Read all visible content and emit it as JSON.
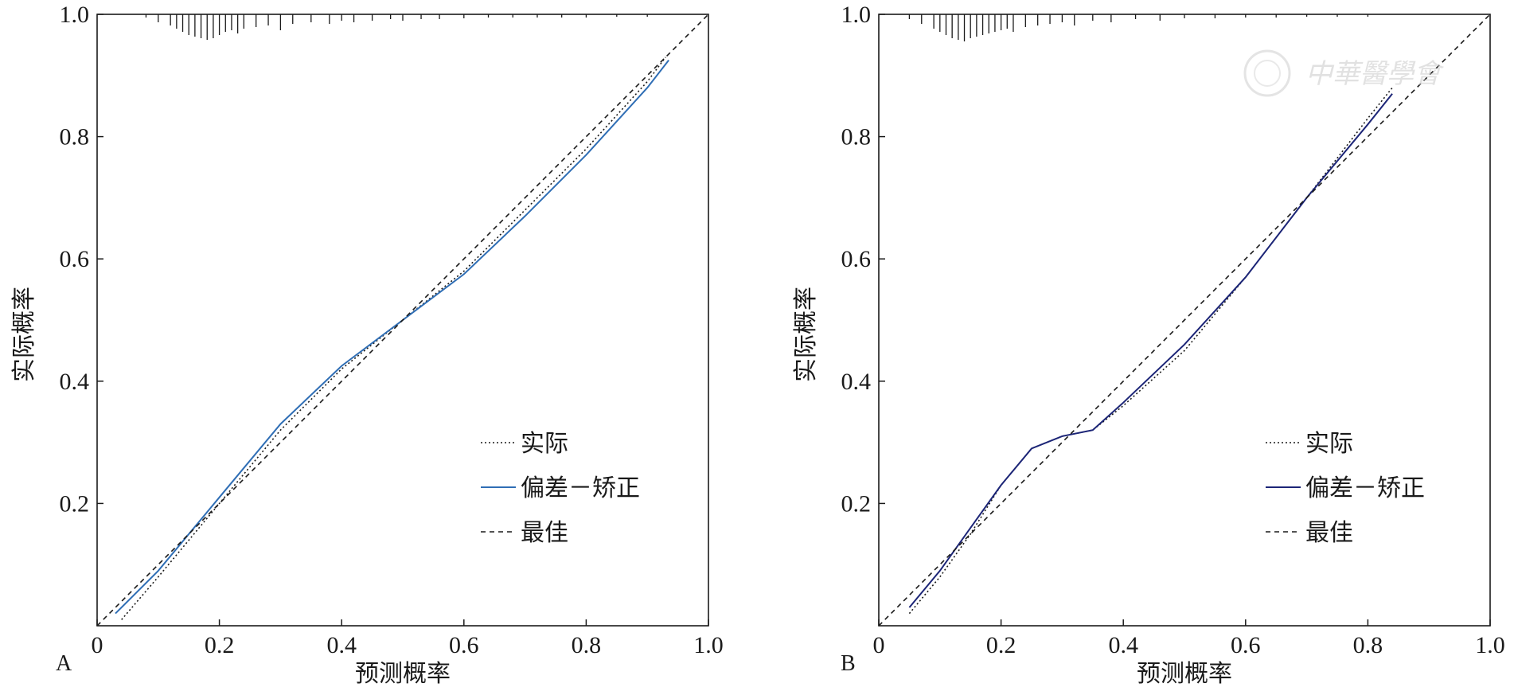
{
  "chart_data": [
    {
      "type": "line",
      "panel": "A",
      "title": "",
      "xlabel": "预测概率",
      "ylabel": "实际概率",
      "xlim": [
        0,
        1.0
      ],
      "ylim": [
        0,
        1.0
      ],
      "x_ticks": [
        "0",
        "0.2",
        "0.4",
        "0.6",
        "0.8",
        "1.0"
      ],
      "y_ticks": [
        "0.2",
        "0.4",
        "0.6",
        "0.8",
        "1.0"
      ],
      "grid": false,
      "legend_position": "lower-right",
      "colors": {
        "bias_corrected": "#2f6eb5",
        "axes": "#1a1a1a"
      },
      "legend": [
        "实际",
        "偏差－矫正",
        "最佳"
      ],
      "series": [
        {
          "name": "实际",
          "style": "dotted",
          "x": [
            0.04,
            0.1,
            0.2,
            0.3,
            0.4,
            0.5,
            0.6,
            0.7,
            0.8,
            0.9,
            0.93
          ],
          "y": [
            0.01,
            0.08,
            0.2,
            0.32,
            0.42,
            0.5,
            0.58,
            0.68,
            0.78,
            0.89,
            0.93
          ]
        },
        {
          "name": "偏差－矫正",
          "style": "solid",
          "x": [
            0.03,
            0.1,
            0.2,
            0.3,
            0.4,
            0.5,
            0.6,
            0.7,
            0.8,
            0.9,
            0.935
          ],
          "y": [
            0.02,
            0.09,
            0.21,
            0.33,
            0.425,
            0.5,
            0.575,
            0.67,
            0.77,
            0.88,
            0.925
          ]
        },
        {
          "name": "最佳",
          "style": "dashed",
          "x": [
            0,
            1.0
          ],
          "y": [
            0,
            1.0
          ]
        }
      ],
      "rug": [
        0.08,
        0.1,
        0.12,
        0.13,
        0.14,
        0.15,
        0.16,
        0.17,
        0.18,
        0.19,
        0.2,
        0.21,
        0.22,
        0.23,
        0.24,
        0.26,
        0.28,
        0.3,
        0.32,
        0.35,
        0.38,
        0.4,
        0.42,
        0.45,
        0.48,
        0.5,
        0.53,
        0.56,
        0.6,
        0.64,
        0.68,
        0.72,
        0.76,
        0.8,
        0.85,
        0.9
      ],
      "rug_heights": [
        4,
        10,
        14,
        18,
        22,
        26,
        28,
        30,
        32,
        30,
        26,
        22,
        20,
        24,
        18,
        16,
        14,
        20,
        12,
        10,
        12,
        8,
        10,
        8,
        6,
        8,
        6,
        6,
        5,
        4,
        4,
        4,
        4,
        4,
        3,
        3
      ]
    },
    {
      "type": "line",
      "panel": "B",
      "title": "",
      "xlabel": "预测概率",
      "ylabel": "实际概率",
      "xlim": [
        0,
        1.0
      ],
      "ylim": [
        0,
        1.0
      ],
      "x_ticks": [
        "0",
        "0.2",
        "0.4",
        "0.6",
        "0.8",
        "1.0"
      ],
      "y_ticks": [
        "0.2",
        "0.4",
        "0.6",
        "0.8",
        "1.0"
      ],
      "grid": false,
      "legend_position": "lower-right",
      "colors": {
        "bias_corrected": "#1c2577",
        "axes": "#1a1a1a"
      },
      "legend": [
        "实际",
        "偏差－矫正",
        "最佳"
      ],
      "series": [
        {
          "name": "实际",
          "style": "dotted",
          "x": [
            0.05,
            0.1,
            0.15,
            0.2,
            0.25,
            0.3,
            0.35,
            0.4,
            0.5,
            0.6,
            0.7,
            0.8,
            0.84
          ],
          "y": [
            0.02,
            0.08,
            0.15,
            0.23,
            0.29,
            0.31,
            0.32,
            0.36,
            0.45,
            0.57,
            0.7,
            0.83,
            0.88
          ]
        },
        {
          "name": "偏差－矫正",
          "style": "solid",
          "x": [
            0.05,
            0.1,
            0.15,
            0.2,
            0.25,
            0.3,
            0.35,
            0.4,
            0.5,
            0.6,
            0.7,
            0.8,
            0.84
          ],
          "y": [
            0.03,
            0.09,
            0.16,
            0.23,
            0.29,
            0.31,
            0.32,
            0.365,
            0.46,
            0.57,
            0.7,
            0.82,
            0.87
          ]
        },
        {
          "name": "最佳",
          "style": "dashed",
          "x": [
            0,
            1.0
          ],
          "y": [
            0,
            1.0
          ]
        }
      ],
      "rug": [
        0.05,
        0.07,
        0.09,
        0.1,
        0.11,
        0.12,
        0.13,
        0.14,
        0.15,
        0.16,
        0.17,
        0.18,
        0.19,
        0.2,
        0.21,
        0.22,
        0.24,
        0.26,
        0.28,
        0.3,
        0.32,
        0.35,
        0.38,
        0.42,
        0.46,
        0.5,
        0.55,
        0.6,
        0.65,
        0.7,
        0.75,
        0.8
      ],
      "rug_heights": [
        6,
        12,
        18,
        22,
        26,
        30,
        32,
        34,
        30,
        28,
        26,
        24,
        22,
        20,
        18,
        22,
        16,
        14,
        12,
        10,
        14,
        8,
        10,
        6,
        8,
        5,
        5,
        4,
        4,
        3,
        3,
        3
      ]
    }
  ],
  "watermark": {
    "text": "中華醫學會"
  }
}
